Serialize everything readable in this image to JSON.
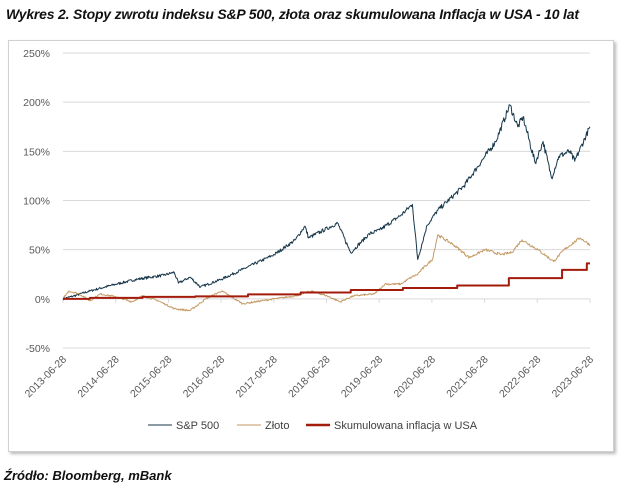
{
  "title": "Wykres 2. Stopy zwrotu indeksu S&P 500, złota oraz skumulowana Inflacja w USA - 10 lat",
  "source": "Źródło: Bloomberg, mBank",
  "chart_data": {
    "type": "line",
    "title": "Wykres 2. Stopy zwrotu indeksu S&P 500, złota oraz skumulowana Inflacja w USA - 10 lat",
    "xlabel": "",
    "ylabel": "",
    "ylim": [
      -50,
      250
    ],
    "y_ticks": [
      "250%",
      "200%",
      "150%",
      "100%",
      "50%",
      "0%",
      "-50%"
    ],
    "y_tick_values": [
      250,
      200,
      150,
      100,
      50,
      0,
      -50
    ],
    "x_ticks": [
      "2013-06-28",
      "2014-06-28",
      "2015-06-28",
      "2016-06-28",
      "2017-06-28",
      "2018-06-28",
      "2019-06-28",
      "2020-06-28",
      "2021-06-28",
      "2022-06-28",
      "2023-06-28"
    ],
    "xlim": [
      2013.49,
      2023.49
    ],
    "grid": true,
    "legend_position": "bottom",
    "series": [
      {
        "name": "S&P 500",
        "color": "#17374a",
        "step": false,
        "points": [
          [
            2013.49,
            0
          ],
          [
            2013.7,
            3
          ],
          [
            2014.0,
            8
          ],
          [
            2014.5,
            15
          ],
          [
            2014.9,
            20
          ],
          [
            2015.4,
            24
          ],
          [
            2015.6,
            27
          ],
          [
            2015.68,
            16
          ],
          [
            2015.9,
            22
          ],
          [
            2016.1,
            12
          ],
          [
            2016.5,
            20
          ],
          [
            2016.9,
            30
          ],
          [
            2017.5,
            45
          ],
          [
            2017.9,
            60
          ],
          [
            2018.08,
            74
          ],
          [
            2018.15,
            62
          ],
          [
            2018.7,
            77
          ],
          [
            2018.95,
            47
          ],
          [
            2019.3,
            66
          ],
          [
            2019.5,
            70
          ],
          [
            2019.9,
            85
          ],
          [
            2020.12,
            96
          ],
          [
            2020.22,
            40
          ],
          [
            2020.4,
            75
          ],
          [
            2020.6,
            90
          ],
          [
            2020.9,
            105
          ],
          [
            2021.1,
            115
          ],
          [
            2021.5,
            145
          ],
          [
            2021.7,
            160
          ],
          [
            2021.97,
            197
          ],
          [
            2022.12,
            175
          ],
          [
            2022.22,
            185
          ],
          [
            2022.45,
            138
          ],
          [
            2022.6,
            160
          ],
          [
            2022.76,
            123
          ],
          [
            2022.9,
            145
          ],
          [
            2023.1,
            150
          ],
          [
            2023.2,
            140
          ],
          [
            2023.49,
            175
          ]
        ]
      },
      {
        "name": "Złoto",
        "color": "#c49a63",
        "step": false,
        "points": [
          [
            2013.49,
            0
          ],
          [
            2013.6,
            8
          ],
          [
            2013.8,
            5
          ],
          [
            2014.0,
            -2
          ],
          [
            2014.2,
            5
          ],
          [
            2014.5,
            2
          ],
          [
            2014.8,
            -3
          ],
          [
            2015.0,
            3
          ],
          [
            2015.3,
            -2
          ],
          [
            2015.6,
            -10
          ],
          [
            2015.9,
            -12
          ],
          [
            2016.2,
            0
          ],
          [
            2016.5,
            8
          ],
          [
            2016.9,
            -5
          ],
          [
            2017.5,
            0
          ],
          [
            2017.9,
            3
          ],
          [
            2018.2,
            8
          ],
          [
            2018.5,
            3
          ],
          [
            2018.75,
            -3
          ],
          [
            2019.0,
            3
          ],
          [
            2019.4,
            5
          ],
          [
            2019.6,
            15
          ],
          [
            2019.9,
            15
          ],
          [
            2020.1,
            22
          ],
          [
            2020.22,
            25
          ],
          [
            2020.3,
            30
          ],
          [
            2020.5,
            40
          ],
          [
            2020.6,
            65
          ],
          [
            2020.9,
            55
          ],
          [
            2021.2,
            42
          ],
          [
            2021.5,
            50
          ],
          [
            2021.8,
            45
          ],
          [
            2022.0,
            47
          ],
          [
            2022.2,
            60
          ],
          [
            2022.5,
            50
          ],
          [
            2022.8,
            38
          ],
          [
            2023.0,
            50
          ],
          [
            2023.3,
            62
          ],
          [
            2023.49,
            55
          ]
        ]
      },
      {
        "name": "Skumulowana inflacja w USA",
        "color": "#a31b0b",
        "step": true,
        "points": [
          [
            2013.49,
            0
          ],
          [
            2014.0,
            1
          ],
          [
            2015.0,
            2
          ],
          [
            2016.0,
            2.5
          ],
          [
            2017.0,
            4.5
          ],
          [
            2018.0,
            6.5
          ],
          [
            2018.95,
            9
          ],
          [
            2019.94,
            11
          ],
          [
            2020.97,
            13.5
          ],
          [
            2021.95,
            21
          ],
          [
            2022.96,
            29.5
          ],
          [
            2023.43,
            36
          ],
          [
            2023.49,
            36
          ]
        ]
      }
    ]
  }
}
